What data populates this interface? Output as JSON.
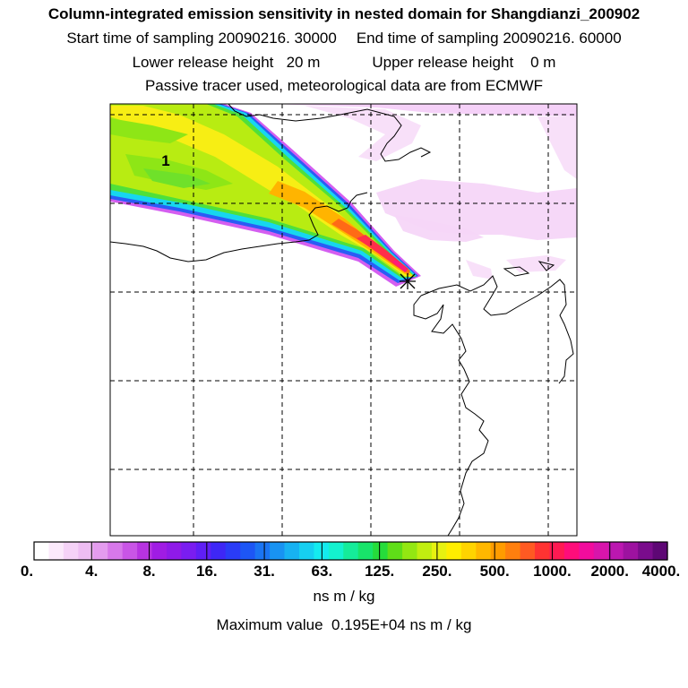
{
  "title": "Column-integrated emission sensitivity in nested domain for Shangdianzi_200902",
  "subtitle": {
    "start_label": "Start time of sampling",
    "start_value": "20090216. 30000",
    "end_label": "End time of sampling",
    "end_value": "20090216. 60000",
    "lower_label": "Lower release height",
    "lower_value": "20 m",
    "upper_label": "Upper release height",
    "upper_value": "0 m",
    "tracer_note": "Passive tracer used, meteorological data are from ECMWF"
  },
  "chart_data": {
    "type": "heatmap",
    "title": "Column-integrated emission sensitivity in nested domain for Shangdianzi_200902",
    "map_label": "1",
    "receptor": "Shangdianzi",
    "colorbar": {
      "tick_labels": [
        "0.",
        "4.",
        "8.",
        "16.",
        "31.",
        "63.",
        "125.",
        "250.",
        "500.",
        "1000.",
        "2000.",
        "4000."
      ],
      "tick_values": [
        0,
        4,
        8,
        16,
        31,
        63,
        125,
        250,
        500,
        1000,
        2000,
        4000
      ],
      "colors": [
        "#ffffff",
        "#fbe9fb",
        "#f5d2f7",
        "#eebdf3",
        "#e49cef",
        "#d778ea",
        "#c955e6",
        "#b733e1",
        "#a01ce4",
        "#8f1ae8",
        "#7a1df0",
        "#5f1ff5",
        "#3e27f6",
        "#2a3cf7",
        "#1d56f5",
        "#1a74f3",
        "#1893f2",
        "#17b2f2",
        "#16cff1",
        "#14ebef",
        "#13f2cf",
        "#15ec9a",
        "#18e46a",
        "#26dc3b",
        "#5fde18",
        "#93e712",
        "#c1ee10",
        "#e7f210",
        "#ffee00",
        "#ffd400",
        "#ffb800",
        "#ff9c00",
        "#ff7f0e",
        "#ff5a22",
        "#ff3332",
        "#ff1a52",
        "#ff0d7a",
        "#f20c9d",
        "#d815ab",
        "#bb17b0",
        "#9d12a0",
        "#7a0c8c",
        "#5e0775"
      ],
      "units": "ns m / kg"
    },
    "maximum_value": "0.195E+04",
    "max_label": "Maximum value",
    "max_units": "ns m / kg"
  }
}
